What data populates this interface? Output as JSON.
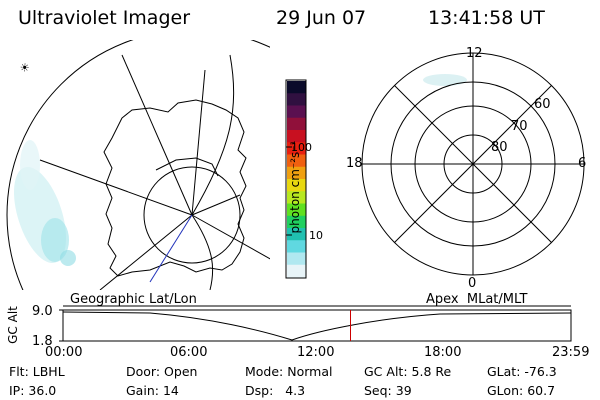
{
  "header": {
    "instrument": "Ultraviolet Imager",
    "date": "29 Jun 07",
    "time": "13:41:58 UT"
  },
  "colorbar": {
    "unit_label": "photon cm⁻²s⁻¹",
    "ticks": [
      "100",
      "10"
    ],
    "colors": [
      "#0a0a2a",
      "#301040",
      "#5a1050",
      "#90103a",
      "#c81020",
      "#e82010",
      "#f06010",
      "#f0a010",
      "#e8d810",
      "#b8e820",
      "#60e020",
      "#20d060",
      "#20c0b0",
      "#60d8e0",
      "#b0e8f0",
      "#e8f4f8"
    ]
  },
  "geo_map": {
    "label": "Geographic Lat/Lon",
    "sun_glyph": "☀"
  },
  "polar_plot": {
    "label": "Apex  MLat/MLT",
    "mlt_labels": {
      "top": "12",
      "left": "18",
      "right": "6",
      "bottom": "0"
    },
    "mlat_labels": [
      "60",
      "70",
      "80"
    ]
  },
  "altitude_plot": {
    "ylabel": "GC Alt",
    "y_max": "9.0",
    "y_min": "1.8",
    "time_ticks": [
      "00:00",
      "06:00",
      "12:00",
      "18:00",
      "23:59"
    ],
    "current_time_marker": "13:41:58",
    "marker_color": "#cc0000"
  },
  "footer": {
    "row1": [
      {
        "label": "Flt:",
        "value": "LBHL"
      },
      {
        "label": "Door:",
        "value": "Open"
      },
      {
        "label": "Mode:",
        "value": "Normal"
      },
      {
        "label": "GC Alt:",
        "value": "5.8 Re"
      },
      {
        "label": "GLat:",
        "value": "-76.3"
      }
    ],
    "row2": [
      {
        "label": "IP:",
        "value": "36.0"
      },
      {
        "label": "Gain:",
        "value": "14"
      },
      {
        "label": "Dsp:",
        "value": "4.3"
      },
      {
        "label": "Seq:",
        "value": "39"
      },
      {
        "label": "GLon:",
        "value": "60.7"
      }
    ]
  }
}
